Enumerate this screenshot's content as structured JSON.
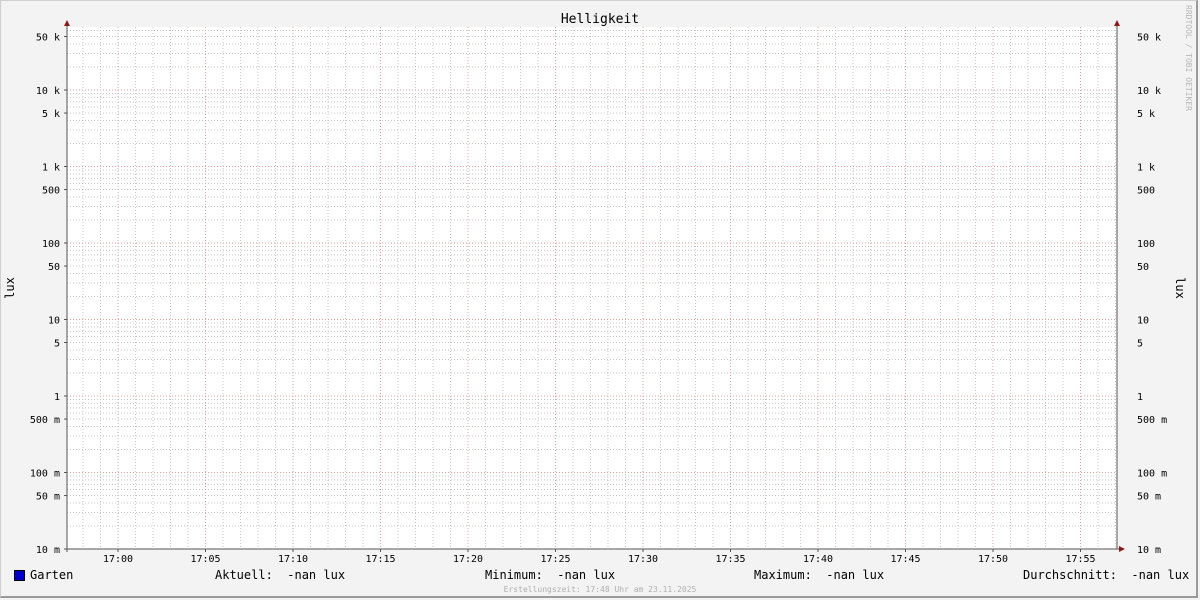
{
  "chart_data": {
    "type": "line",
    "title": "Helligkeit",
    "ylabel": "lux",
    "yscale": "log",
    "ylim": [
      0.01,
      66000
    ],
    "y_ticks": [
      {
        "value": 50000,
        "label": "50 k"
      },
      {
        "value": 10000,
        "label": "10 k"
      },
      {
        "value": 5000,
        "label": "5 k"
      },
      {
        "value": 1000,
        "label": "1 k"
      },
      {
        "value": 500,
        "label": "500"
      },
      {
        "value": 100,
        "label": "100"
      },
      {
        "value": 50,
        "label": "50"
      },
      {
        "value": 10,
        "label": "10"
      },
      {
        "value": 5,
        "label": "5"
      },
      {
        "value": 1,
        "label": "1"
      },
      {
        "value": 0.5,
        "label": "500 m"
      },
      {
        "value": 0.1,
        "label": "100 m"
      },
      {
        "value": 0.05,
        "label": "50 m"
      },
      {
        "value": 0.01,
        "label": "10 m"
      }
    ],
    "xlim": [
      "16:57",
      "17:57"
    ],
    "x_ticks": [
      "17:00",
      "17:05",
      "17:10",
      "17:15",
      "17:20",
      "17:25",
      "17:30",
      "17:35",
      "17:40",
      "17:45",
      "17:50",
      "17:55"
    ],
    "grid": true,
    "colors": {
      "major_grid": "#e0a0a0",
      "minor_grid": "#c8c8c8",
      "axis": "#555555",
      "arrow": "#8b1a1a"
    },
    "series": [
      {
        "name": "Garten",
        "color": "#0000c8",
        "values": []
      }
    ]
  },
  "legend": {
    "series_name": "Garten",
    "aktuell": "Aktuell:  -nan lux",
    "minimum": "Minimum:  -nan lux",
    "maximum": "Maximum:  -nan lux",
    "durchschnitt": "Durchschnitt:  -nan lux"
  },
  "watermark": "RRDTOOL / TOBI OETIKER",
  "footer": "Erstellungszeit: 17:48 Uhr am 23.11.2025"
}
